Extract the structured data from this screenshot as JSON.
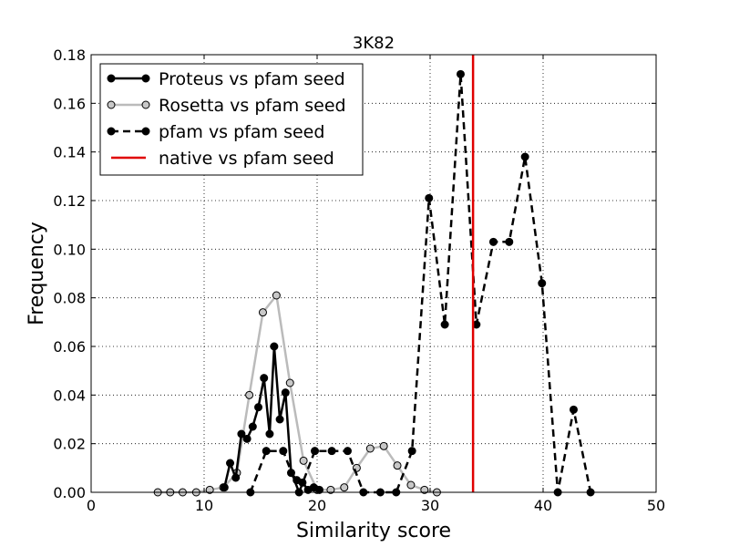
{
  "chart_data": {
    "type": "line",
    "title": "3K82",
    "xlabel": "Similarity score",
    "ylabel": "Frequency",
    "xlim": [
      0,
      50
    ],
    "ylim": [
      0,
      0.18
    ],
    "xticks": [
      "0",
      "10",
      "20",
      "30",
      "40",
      "50"
    ],
    "yticks": [
      "0.00",
      "0.02",
      "0.04",
      "0.06",
      "0.08",
      "0.10",
      "0.12",
      "0.14",
      "0.16",
      "0.18"
    ],
    "grid": true,
    "legend_position": "top-left",
    "series": [
      {
        "name": "Proteus vs pfam seed",
        "style": "solid",
        "color": "#000000",
        "marker_fill": "#000000",
        "x": [
          11.8,
          12.3,
          12.8,
          13.3,
          13.8,
          14.3,
          14.8,
          15.3,
          15.8,
          16.2,
          16.7,
          17.2,
          17.7,
          18.2,
          18.7,
          19.2,
          19.7,
          20.2
        ],
        "y": [
          0.002,
          0.012,
          0.006,
          0.024,
          0.022,
          0.027,
          0.035,
          0.047,
          0.024,
          0.06,
          0.03,
          0.041,
          0.008,
          0.005,
          0.004,
          0.001,
          0.002,
          0.001
        ]
      },
      {
        "name": "Rosetta vs pfam seed",
        "style": "solid",
        "color": "#bbbbbb",
        "marker_fill": "#c8c8c8",
        "x": [
          5.9,
          7.0,
          8.1,
          9.3,
          10.5,
          11.7,
          12.9,
          14.0,
          15.2,
          16.4,
          17.6,
          18.8,
          20.0,
          21.2,
          22.4,
          23.5,
          24.7,
          25.9,
          27.1,
          28.3,
          29.5,
          30.6
        ],
        "y": [
          0.0,
          0.0,
          0.0,
          0.0,
          0.001,
          0.002,
          0.008,
          0.04,
          0.074,
          0.081,
          0.045,
          0.013,
          0.001,
          0.001,
          0.002,
          0.01,
          0.018,
          0.019,
          0.011,
          0.003,
          0.001,
          0.0
        ]
      },
      {
        "name": "pfam vs pfam seed",
        "style": "dashed",
        "color": "#000000",
        "marker_fill": "#000000",
        "x": [
          14.1,
          15.5,
          17.0,
          18.4,
          19.8,
          21.3,
          22.7,
          24.1,
          25.6,
          27.0,
          28.4,
          29.9,
          31.3,
          32.7,
          34.1,
          35.6,
          37.0,
          38.4,
          39.9,
          41.3,
          42.7,
          44.2
        ],
        "y": [
          0.0,
          0.017,
          0.017,
          0.0,
          0.017,
          0.017,
          0.017,
          0.0,
          0.0,
          0.0,
          0.017,
          0.121,
          0.069,
          0.172,
          0.069,
          0.103,
          0.103,
          0.138,
          0.086,
          0.0,
          0.034,
          0.0
        ]
      },
      {
        "name": "native vs pfam seed",
        "style": "vline",
        "color": "#e00000",
        "x": 33.8
      }
    ]
  }
}
